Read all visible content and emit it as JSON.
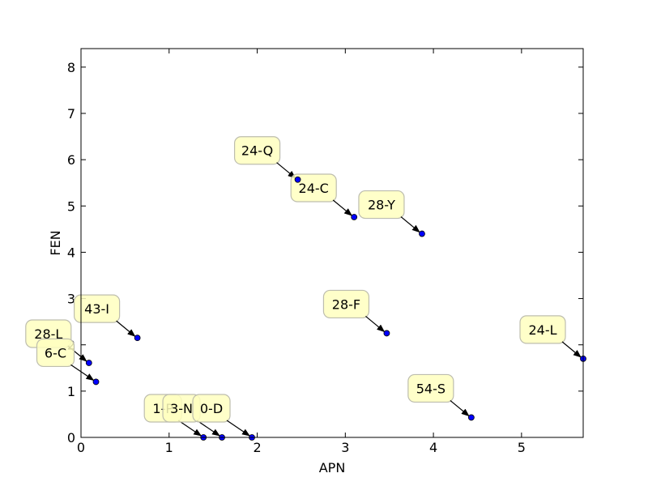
{
  "chart_data": {
    "type": "scatter",
    "xlabel": "APN",
    "ylabel": "FEN",
    "xlim": [
      0,
      5.7
    ],
    "ylim": [
      0,
      8.4
    ],
    "x_ticks": [
      0,
      1,
      2,
      3,
      4,
      5
    ],
    "y_ticks": [
      0,
      1,
      2,
      3,
      4,
      5,
      6,
      7,
      8
    ],
    "grid": false,
    "colors": {
      "marker": "#0000ff",
      "annotation_fill": "#ffffbf",
      "annotation_border": "#bdbdae"
    },
    "points": [
      {
        "label": "24-Q",
        "x": 2.46,
        "y": 5.57
      },
      {
        "label": "24-C",
        "x": 3.1,
        "y": 4.76
      },
      {
        "label": "28-Y",
        "x": 3.87,
        "y": 4.4
      },
      {
        "label": "43-I",
        "x": 0.64,
        "y": 2.15
      },
      {
        "label": "28-F",
        "x": 3.47,
        "y": 2.25
      },
      {
        "label": "28-L",
        "x": 0.09,
        "y": 1.61
      },
      {
        "label": "6-C",
        "x": 0.17,
        "y": 1.2
      },
      {
        "label": "24-L",
        "x": 5.7,
        "y": 1.7
      },
      {
        "label": "54-S",
        "x": 4.43,
        "y": 0.43
      },
      {
        "label": "1-P",
        "x": 1.39,
        "y": 0.0
      },
      {
        "label": "3-N",
        "x": 1.6,
        "y": 0.0
      },
      {
        "label": "0-D",
        "x": 1.94,
        "y": 0.0
      }
    ]
  }
}
